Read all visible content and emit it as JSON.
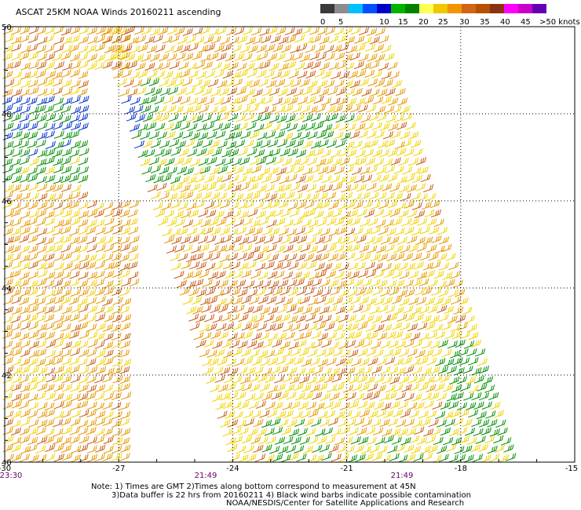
{
  "title": "ASCAT 25KM NOAA Winds 20160211 ascending",
  "colorbar": {
    "colors": [
      "#3a3a3a",
      "#8c8c8c",
      "#00c0ff",
      "#0050ff",
      "#0000c8",
      "#00b400",
      "#008200",
      "#ffff55",
      "#f0c800",
      "#f09600",
      "#d26414",
      "#b45000",
      "#8c3214",
      "#ff00ff",
      "#c800c8",
      "#6400b4"
    ],
    "labels": [
      "0",
      "5",
      "10",
      "15",
      "20",
      "25",
      "30",
      "35",
      "40",
      "45",
      ">50 knots"
    ]
  },
  "map": {
    "lon_labels": [
      "-30",
      "-27",
      "-24",
      "-21",
      "-18",
      "-15"
    ],
    "lat_labels": [
      "50",
      "48",
      "46",
      "44",
      "42",
      "40"
    ],
    "lon_range": [
      -30,
      -15
    ],
    "lat_range": [
      40,
      50
    ],
    "time_labels": [
      "23:30",
      "21:49",
      "21:49"
    ],
    "grid": true,
    "barb_colors": {
      "green": "#008c00",
      "blue": "#0032c8",
      "yellow": "#f0d200",
      "orange": "#e69600",
      "brown": "#c85a14"
    },
    "swaths": [
      {
        "name": "western swath",
        "time": "23:30",
        "lon_edges_at_50N": [
          -30,
          -26.8
        ],
        "lon_edges_at_40N": [
          -30,
          -26.9
        ]
      },
      {
        "name": "eastern swath",
        "time": "21:49",
        "lon_edges_at_50N": [
          -27.3,
          -20.1
        ],
        "lon_edges_at_40N": [
          -23.9,
          -16.5
        ]
      }
    ]
  },
  "notes": [
    "Note: 1) Times are GMT 2)Times along bottom correspond to measurement at 45N",
    "3)Data buffer is 22 hrs from 20160211 4) Black wind barbs indicate possible contamination",
    "NOAA/NESDIS/Center for Satellite Applications and Research"
  ]
}
